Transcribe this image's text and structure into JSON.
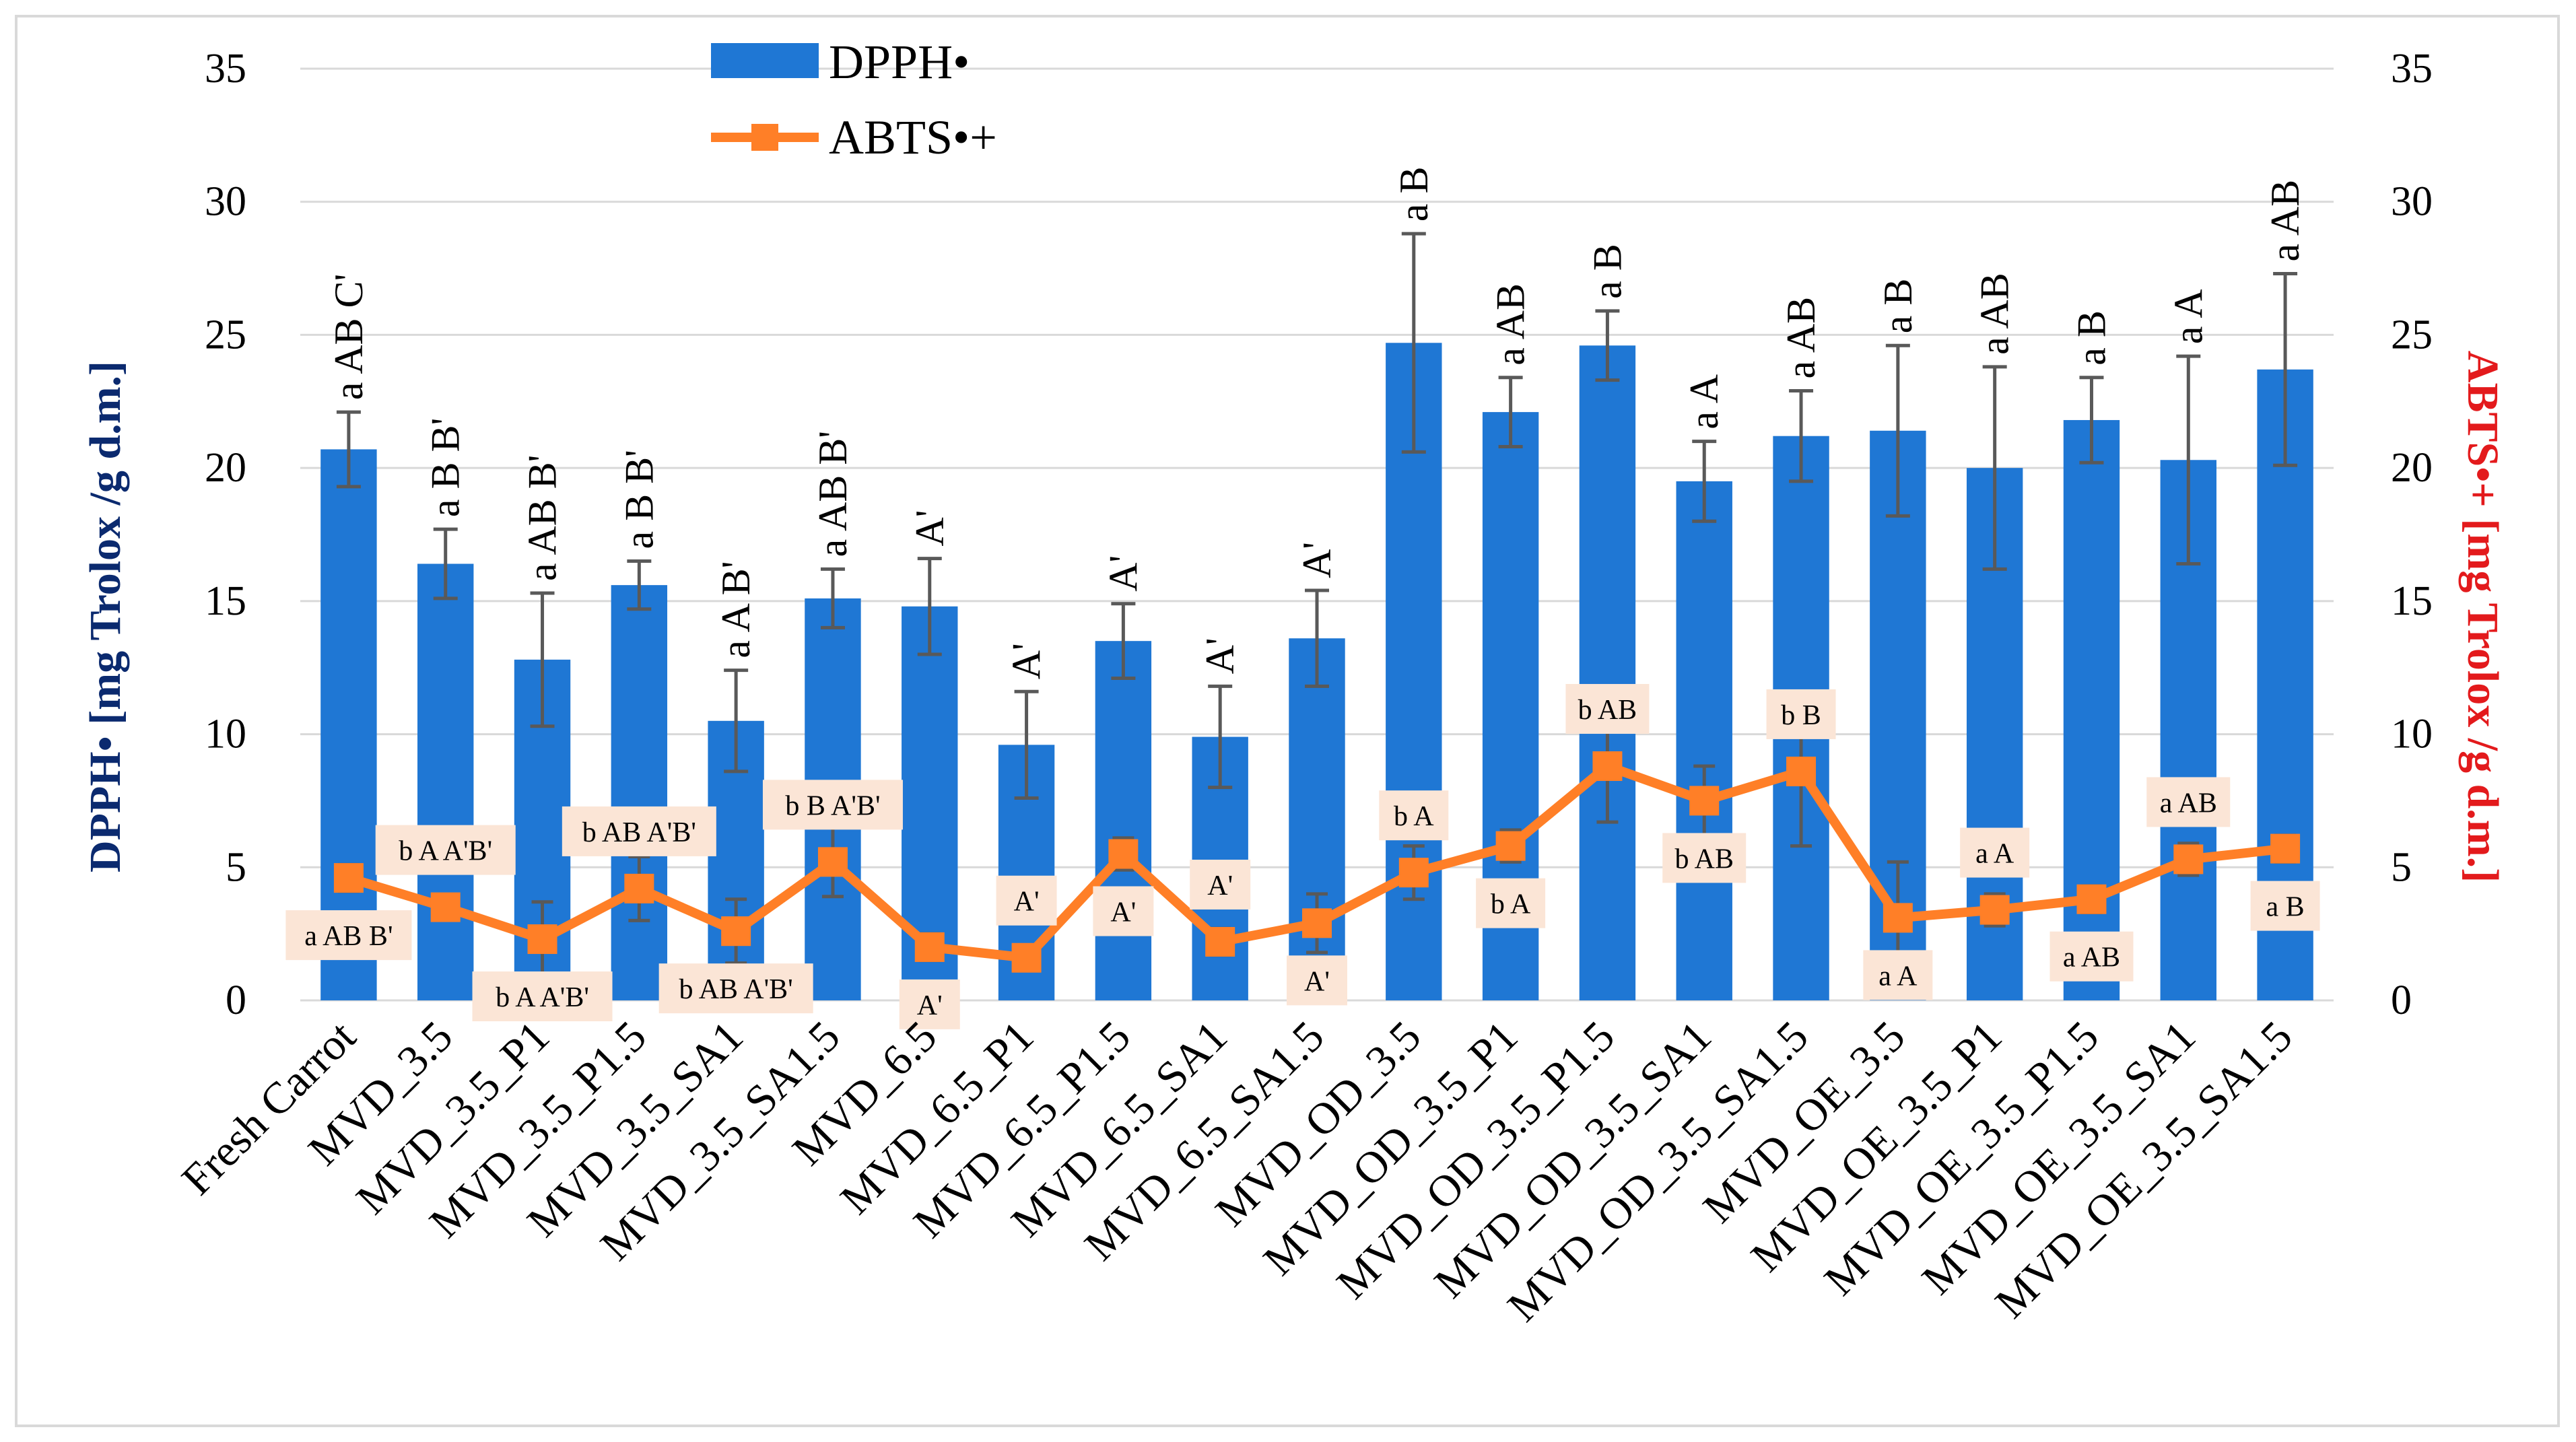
{
  "chart_data": {
    "type": "bar",
    "categories": [
      "Fresh Carrot",
      "MVD_3.5",
      "MVD_3.5_P1",
      "MVD_3.5_P1.5",
      "MVD_3.5_SA1",
      "MVD_3.5_SA1.5",
      "MVD_6.5",
      "MVD_6.5_P1",
      "MVD_6.5_P1.5",
      "MVD_6.5_SA1",
      "MVD_6.5_SA1.5",
      "MVD_OD_3.5",
      "MVD_OD_3.5_P1",
      "MVD_OD_3.5_P1.5",
      "MVD_OD_3.5_SA1",
      "MVD_OD_3.5_SA1.5",
      "MVD_OE_3.5",
      "MVD_OE_3.5_P1",
      "MVD_OE_3.5_P1.5",
      "MVD_OE_3.5_SA1",
      "MVD_OE_3.5_SA1.5"
    ],
    "ylabel": "DPPH• [mg Trolox /g d.m.]",
    "y2label": "ABTS•+ [mg Trolox /g d.m.]",
    "ylim": [
      0,
      35
    ],
    "y2lim": [
      0,
      35
    ],
    "yticks": [
      0,
      5,
      10,
      15,
      20,
      25,
      30,
      35
    ],
    "legend_position": "top-center",
    "colors": {
      "bar": "#1f77d4",
      "line": "#ff7f27",
      "error": "#595959",
      "grid": "#d9d9d9",
      "left_axis_title": "#0b2a6f",
      "right_axis_title": "#e31a1c",
      "label_box": "#fbe5d6"
    },
    "series": [
      {
        "name": "DPPH•",
        "type": "bar",
        "axis": "left",
        "values": [
          20.7,
          16.4,
          12.8,
          15.6,
          10.5,
          15.1,
          14.8,
          9.6,
          13.5,
          9.9,
          13.6,
          24.7,
          22.1,
          24.6,
          19.5,
          21.2,
          21.4,
          20.0,
          21.8,
          20.3,
          23.7
        ],
        "errors": [
          1.4,
          1.3,
          2.5,
          0.9,
          1.9,
          1.1,
          1.8,
          2.0,
          1.4,
          1.9,
          1.8,
          4.1,
          1.3,
          1.3,
          1.5,
          1.7,
          3.2,
          3.8,
          1.6,
          3.9,
          3.6
        ],
        "labels": [
          "a AB C'",
          "a B B'",
          "a AB B'",
          "a B B'",
          "a A B'",
          "a AB B'",
          "A'",
          "A'",
          "A'",
          "A'",
          "A'",
          "a B",
          "a AB",
          "a B",
          "a A",
          "a AB",
          "a B",
          "a AB",
          "a B",
          "a A",
          "a AB"
        ]
      },
      {
        "name": "ABTS•+",
        "type": "line",
        "axis": "right",
        "values": [
          4.6,
          3.5,
          2.3,
          4.2,
          2.6,
          5.2,
          2.0,
          1.6,
          5.5,
          2.2,
          2.9,
          4.8,
          5.8,
          8.8,
          7.5,
          8.6,
          3.1,
          3.4,
          3.8,
          5.3,
          5.7
        ],
        "errors": [
          0.5,
          0.4,
          1.4,
          1.2,
          1.2,
          1.3,
          0.5,
          0.4,
          0.6,
          0.5,
          1.1,
          1.0,
          0.6,
          2.1,
          1.3,
          2.8,
          2.1,
          0.6,
          0.5,
          0.6,
          0.5
        ],
        "labels": [
          "a AB B'",
          "b A A'B'",
          "b A A'B'",
          "b AB A'B'",
          "b AB A'B'",
          "b B A'B'",
          "A'",
          "A'",
          "A'",
          "A'",
          "A'",
          "b A",
          "b A",
          "b AB",
          "b AB",
          "b B",
          "a A",
          "a A",
          "a AB",
          "a AB",
          "a B"
        ],
        "label_side": [
          "below",
          "above",
          "below",
          "above",
          "below",
          "above",
          "below",
          "above",
          "below",
          "above",
          "below",
          "above",
          "below",
          "above",
          "below",
          "above",
          "below",
          "above",
          "below",
          "above",
          "below"
        ]
      }
    ]
  }
}
